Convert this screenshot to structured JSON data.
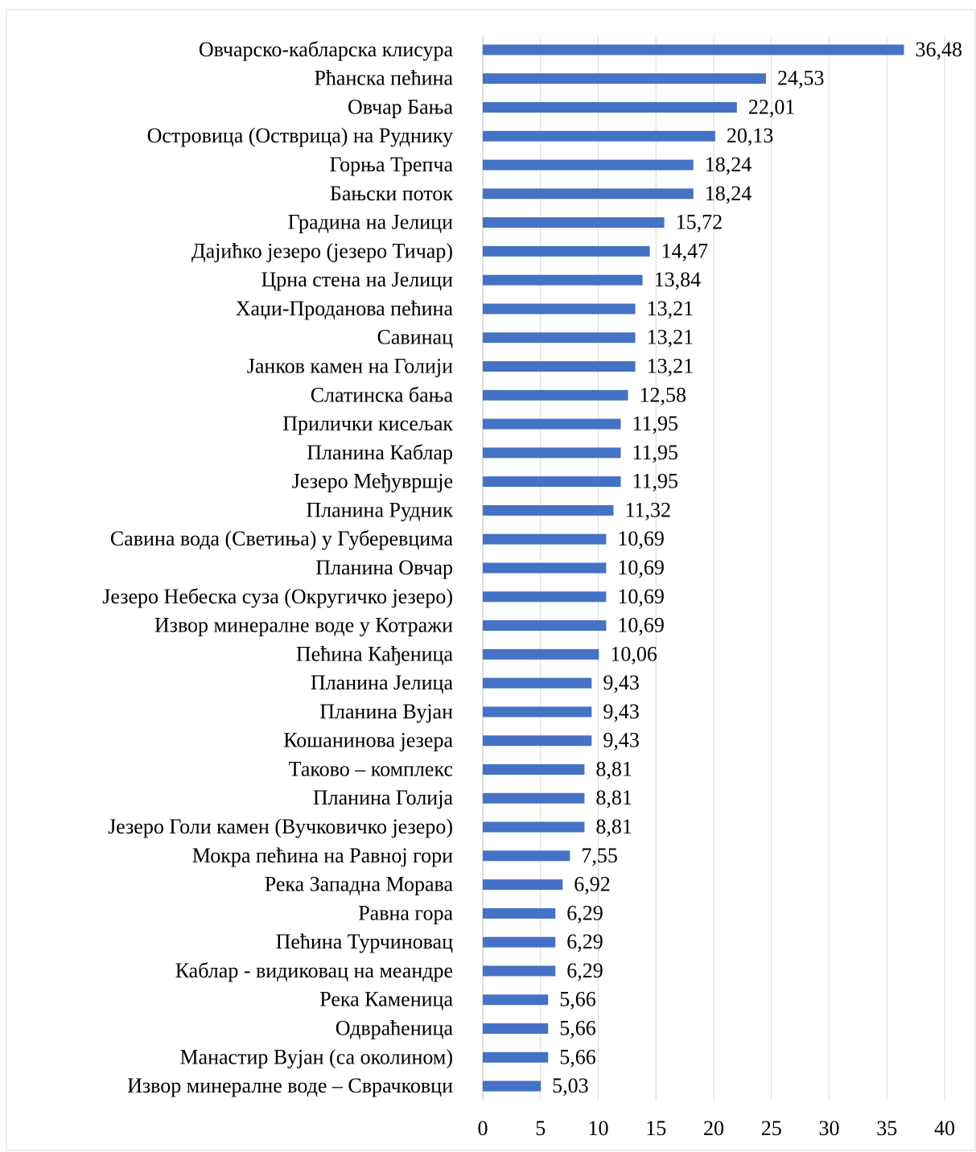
{
  "chart_data": {
    "type": "barh",
    "categories": [
      "Овчарско-кабларска клисура",
      "Рћанска пећина",
      "Овчар Бања",
      "Островица (Остврица) на Руднику",
      "Горња Трепча",
      "Бањски поток",
      "Градина на Јелици",
      "Дајићко језеро (језеро Тичар)",
      "Црна стена на Јелици",
      "Хаџи-Проданова пећина",
      "Савинац",
      "Јанков камен на Голији",
      "Слатинска бања",
      "Прилички кисељак",
      "Планина Каблар",
      "Језеро Међувршје",
      "Планина Рудник",
      "Савина вода (Светиња) у Губеревцима",
      "Планина Овчар",
      "Језеро Небеска суза (Округичко језеро)",
      "Извор минералне воде у Котражи",
      "Пећина Кађеница",
      "Планина Јелица",
      "Планина Вујан",
      "Кошанинова језера",
      "Таково – комплекс",
      "Планина Голија",
      "Језеро Голи камен (Вучковичко језеро)",
      "Мокра пећина на Равној гори",
      "Река Западна Морава",
      "Равна гора",
      "Пећина Турчиновац",
      "Каблар - видиковац на меандре",
      "Река Каменица",
      "Одвраћеница",
      "Манастир Вујан (са околином)",
      "Извор минералне воде – Сврачковци"
    ],
    "values": [
      36.48,
      24.53,
      22.01,
      20.13,
      18.24,
      18.24,
      15.72,
      14.47,
      13.84,
      13.21,
      13.21,
      13.21,
      12.58,
      11.95,
      11.95,
      11.95,
      11.32,
      10.69,
      10.69,
      10.69,
      10.69,
      10.06,
      9.43,
      9.43,
      9.43,
      8.81,
      8.81,
      8.81,
      7.55,
      6.92,
      6.29,
      6.29,
      6.29,
      5.66,
      5.66,
      5.66,
      5.03
    ],
    "value_labels": [
      "36,48",
      "24,53",
      "22,01",
      "20,13",
      "18,24",
      "18,24",
      "15,72",
      "14,47",
      "13,84",
      "13,21",
      "13,21",
      "13,21",
      "12,58",
      "11,95",
      "11,95",
      "11,95",
      "11,32",
      "10,69",
      "10,69",
      "10,69",
      "10,69",
      "10,06",
      "9,43",
      "9,43",
      "9,43",
      "8,81",
      "8,81",
      "8,81",
      "7,55",
      "6,92",
      "6,29",
      "6,29",
      "6,29",
      "5,66",
      "5,66",
      "5,66",
      "5,03"
    ],
    "color": "#4472c4",
    "xlim": [
      0,
      40
    ],
    "xticks": [
      0,
      5,
      10,
      15,
      20,
      25,
      30,
      35,
      40
    ],
    "grid": true
  }
}
